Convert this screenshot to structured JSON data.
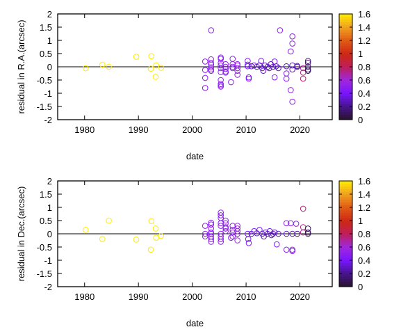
{
  "chart_data": [
    {
      "type": "scatter",
      "xlabel": "date",
      "ylabel": "residual in R.A.(arcsec)",
      "xlim": [
        1975,
        2026
      ],
      "ylim": [
        -2,
        2
      ],
      "xticks": [
        "1980",
        "1990",
        "2000",
        "2010",
        "2020"
      ],
      "yticks": [
        "-2",
        "-1.5",
        "-1",
        "-0.5",
        "0",
        "0.5",
        "1",
        "1.5",
        "2"
      ],
      "colorbar": {
        "range": [
          0,
          1.6
        ],
        "ticks": [
          "0",
          "0.2",
          "0.4",
          "0.6",
          "0.8",
          "1",
          "1.2",
          "1.4",
          "1.6"
        ]
      },
      "points": [
        [
          1980.2,
          -0.05,
          1.6
        ],
        [
          1983.3,
          0.08,
          1.6
        ],
        [
          1984.5,
          0,
          1.6
        ],
        [
          1989.6,
          0.38,
          1.6
        ],
        [
          1992.4,
          0.4,
          1.6
        ],
        [
          1992.3,
          -0.07,
          1.6
        ],
        [
          1993.3,
          0.05,
          1.6
        ],
        [
          1993.2,
          -0.38,
          1.6
        ],
        [
          1994.2,
          -0.04,
          1.6
        ],
        [
          2002.4,
          0.2,
          0.5
        ],
        [
          2002.4,
          -0.12,
          0.5
        ],
        [
          2002.4,
          -0.42,
          0.5
        ],
        [
          2002.4,
          -0.8,
          0.5
        ],
        [
          2003.5,
          1.38,
          0.5
        ],
        [
          2003.5,
          0.28,
          0.5
        ],
        [
          2003.5,
          0.15,
          0.5
        ],
        [
          2003.5,
          0.08,
          0.5
        ],
        [
          2003.5,
          -0.02,
          0.5
        ],
        [
          2003.5,
          -0.1,
          0.5
        ],
        [
          2003.5,
          -0.15,
          0.5
        ],
        [
          2005.3,
          0.35,
          0.5
        ],
        [
          2005.3,
          0.3,
          0.5
        ],
        [
          2005.3,
          0.15,
          0.5
        ],
        [
          2005.3,
          0.05,
          0.5
        ],
        [
          2005.3,
          -0.05,
          0.5
        ],
        [
          2005.3,
          -0.2,
          0.5
        ],
        [
          2005.3,
          -0.5,
          0.5
        ],
        [
          2005.3,
          -0.65,
          0.5
        ],
        [
          2005.3,
          -0.7,
          0.5
        ],
        [
          2005.3,
          -0.75,
          0.5
        ],
        [
          2006.2,
          0.1,
          0.5
        ],
        [
          2006.2,
          0,
          0.5
        ],
        [
          2006.2,
          -0.08,
          0.5
        ],
        [
          2006.2,
          -0.18,
          0.5
        ],
        [
          2006.2,
          -0.22,
          0.5
        ],
        [
          2007.2,
          -0.58,
          0.5
        ],
        [
          2007.5,
          0.3,
          0.5
        ],
        [
          2007.5,
          0.1,
          0.5
        ],
        [
          2007.5,
          0,
          0.5
        ],
        [
          2007.5,
          -0.05,
          0.5
        ],
        [
          2008.4,
          0.1,
          0.55
        ],
        [
          2008.4,
          0.05,
          0.55
        ],
        [
          2008.4,
          -0.05,
          0.55
        ],
        [
          2008.4,
          -0.15,
          0.55
        ],
        [
          2008.4,
          -0.3,
          0.55
        ],
        [
          2010.3,
          0.22,
          0.4
        ],
        [
          2010.3,
          0.08,
          0.4
        ],
        [
          2010.3,
          0.02,
          0.35
        ],
        [
          2010.5,
          -0.4,
          0.45
        ],
        [
          2010.5,
          -0.45,
          0.45
        ],
        [
          2011,
          0.02,
          0.3
        ],
        [
          2011.5,
          0.05,
          0.3
        ],
        [
          2012,
          0,
          0.3
        ],
        [
          2012.5,
          0.05,
          0.3
        ],
        [
          2012.8,
          0.22,
          0.4
        ],
        [
          2013,
          -0.05,
          0.3
        ],
        [
          2013.2,
          -0.15,
          0.35
        ],
        [
          2013.5,
          0.05,
          0.3
        ],
        [
          2014,
          0,
          0.3
        ],
        [
          2014.3,
          -0.05,
          0.3
        ],
        [
          2014.6,
          0.1,
          0.3
        ],
        [
          2015,
          0,
          0.3
        ],
        [
          2015.3,
          0.2,
          0.4
        ],
        [
          2015.3,
          -0.4,
          0.45
        ],
        [
          2015.6,
          0.02,
          0.3
        ],
        [
          2016,
          -0.05,
          0.3
        ],
        [
          2016.3,
          1.38,
          0.5
        ],
        [
          2017.5,
          0.02,
          0.25
        ],
        [
          2017.5,
          -0.25,
          0.45
        ],
        [
          2017.5,
          -0.45,
          0.45
        ],
        [
          2018.3,
          0.58,
          0.5
        ],
        [
          2018.3,
          -0.88,
          0.5
        ],
        [
          2018.6,
          1.15,
          0.5
        ],
        [
          2018.6,
          0.88,
          0.5
        ],
        [
          2018.6,
          -1.32,
          0.5
        ],
        [
          2018.6,
          0.05,
          0.3
        ],
        [
          2018.6,
          -0.1,
          0.3
        ],
        [
          2019.5,
          0,
          0.25
        ],
        [
          2019.5,
          0.03,
          0.25
        ],
        [
          2020.6,
          -0.45,
          0.75
        ],
        [
          2020.6,
          -0.22,
          0.75
        ],
        [
          2020.6,
          -0.05,
          0.7
        ],
        [
          2021.5,
          0.22,
          0.15
        ],
        [
          2021.5,
          0.15,
          0.15
        ],
        [
          2021.5,
          0,
          0.1
        ],
        [
          2021.5,
          -0.1,
          0.1
        ],
        [
          2021.5,
          -0.15,
          0.15
        ]
      ]
    },
    {
      "type": "scatter",
      "xlabel": "date",
      "ylabel": "residual in Dec.(arcsec)",
      "xlim": [
        1975,
        2026
      ],
      "ylim": [
        -2,
        2
      ],
      "xticks": [
        "1980",
        "1990",
        "2000",
        "2010",
        "2020"
      ],
      "yticks": [
        "-2",
        "-1.5",
        "-1",
        "-0.5",
        "0",
        "0.5",
        "1",
        "1.5",
        "2"
      ],
      "colorbar": {
        "range": [
          0,
          1.6
        ],
        "ticks": [
          "0",
          "0.2",
          "0.4",
          "0.6",
          "0.8",
          "1",
          "1.2",
          "1.4",
          "1.6"
        ]
      },
      "points": [
        [
          1980.2,
          0.15,
          1.6
        ],
        [
          1983.3,
          -0.2,
          1.6
        ],
        [
          1984.5,
          0.5,
          1.6
        ],
        [
          1989.6,
          -0.22,
          1.6
        ],
        [
          1992.4,
          0.48,
          1.6
        ],
        [
          1992.3,
          -0.6,
          1.6
        ],
        [
          1993.2,
          0.2,
          1.6
        ],
        [
          1993.3,
          -0.15,
          1.6
        ],
        [
          1994.2,
          -0.08,
          1.6
        ],
        [
          2002.4,
          0.3,
          0.5
        ],
        [
          2002.4,
          0,
          0.5
        ],
        [
          2002.4,
          -0.1,
          0.5
        ],
        [
          2003.5,
          0.42,
          0.5
        ],
        [
          2003.5,
          0.35,
          0.5
        ],
        [
          2003.5,
          0.2,
          0.5
        ],
        [
          2003.5,
          0.05,
          0.5
        ],
        [
          2003.5,
          0,
          0.5
        ],
        [
          2003.5,
          -0.1,
          0.5
        ],
        [
          2003.5,
          -0.2,
          0.5
        ],
        [
          2003.5,
          -0.3,
          0.5
        ],
        [
          2005.3,
          0.8,
          0.5
        ],
        [
          2005.3,
          0.7,
          0.5
        ],
        [
          2005.3,
          0.6,
          0.5
        ],
        [
          2005.3,
          0.4,
          0.5
        ],
        [
          2005.3,
          0.3,
          0.5
        ],
        [
          2005.3,
          0,
          0.5
        ],
        [
          2005.3,
          -0.1,
          0.5
        ],
        [
          2005.3,
          -0.2,
          0.5
        ],
        [
          2005.3,
          -0.3,
          0.5
        ],
        [
          2006.2,
          0.5,
          0.5
        ],
        [
          2006.2,
          0.4,
          0.5
        ],
        [
          2006.2,
          0.25,
          0.5
        ],
        [
          2006.2,
          0.2,
          0.5
        ],
        [
          2006.2,
          0.1,
          0.5
        ],
        [
          2007.2,
          -0.15,
          0.5
        ],
        [
          2007.5,
          0.3,
          0.5
        ],
        [
          2007.5,
          0.15,
          0.5
        ],
        [
          2007.5,
          0.05,
          0.5
        ],
        [
          2007.5,
          -0.1,
          0.5
        ],
        [
          2008.4,
          0.3,
          0.55
        ],
        [
          2008.4,
          0.2,
          0.55
        ],
        [
          2008.4,
          0.1,
          0.55
        ],
        [
          2008.4,
          0,
          0.55
        ],
        [
          2008.4,
          -0.25,
          0.55
        ],
        [
          2010.3,
          0,
          0.4
        ],
        [
          2010.4,
          -0.2,
          0.45
        ],
        [
          2010.5,
          -0.35,
          0.45
        ],
        [
          2011,
          0,
          0.3
        ],
        [
          2011.5,
          0.1,
          0.4
        ],
        [
          2012,
          0.02,
          0.3
        ],
        [
          2012.5,
          0.15,
          0.4
        ],
        [
          2013,
          0,
          0.3
        ],
        [
          2013.3,
          -0.1,
          0.3
        ],
        [
          2013.6,
          0.05,
          0.3
        ],
        [
          2014,
          0,
          0.3
        ],
        [
          2014.4,
          0.1,
          0.35
        ],
        [
          2014.7,
          -0.05,
          0.3
        ],
        [
          2015,
          0,
          0.3
        ],
        [
          2015.3,
          0.05,
          0.3
        ],
        [
          2015.7,
          -0.4,
          0.45
        ],
        [
          2016,
          0,
          0.3
        ],
        [
          2017.5,
          0.4,
          0.5
        ],
        [
          2017.5,
          0,
          0.3
        ],
        [
          2017.5,
          -0.6,
          0.5
        ],
        [
          2018.3,
          0.4,
          0.5
        ],
        [
          2018.6,
          0,
          0.3
        ],
        [
          2018.6,
          -0.6,
          0.5
        ],
        [
          2018.6,
          -0.65,
          0.5
        ],
        [
          2019.3,
          0.38,
          0.5
        ],
        [
          2019.5,
          0,
          0.2
        ],
        [
          2020.6,
          0.95,
          0.75
        ],
        [
          2020.6,
          0.25,
          0.75
        ],
        [
          2020.6,
          0.05,
          0.7
        ],
        [
          2021.5,
          0.2,
          0.1
        ],
        [
          2021.5,
          0.05,
          0.1
        ],
        [
          2021.5,
          0,
          0.1
        ]
      ]
    }
  ]
}
